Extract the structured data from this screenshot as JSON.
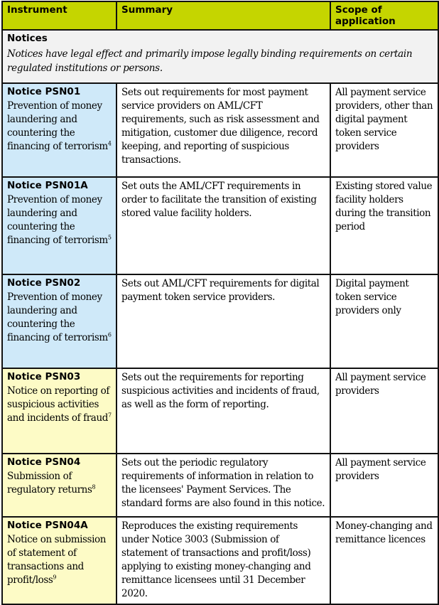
{
  "header": {
    "instrument": "Instrument",
    "summary": "Summary",
    "scope": "Scope of application"
  },
  "section": {
    "title": "Notices",
    "description": "Notices have legal effect and primarily impose legally binding requirements on certain regulated institutions or persons."
  },
  "colors": {
    "header": "#c5d500",
    "blue": "#cfe9f9",
    "yellow": "#fdfbc6",
    "section": "#f2f2f2"
  },
  "rows": [
    {
      "code": "Notice PSN01",
      "title": "Prevention of money laundering and countering the financing of terrorism",
      "footnote": "4",
      "summary": "Sets out requirements for most payment service providers on AML/CFT requirements, such as risk assessment and mitigation, customer due diligence, record keeping, and reporting of suspicious transactions.",
      "scope": "All payment service providers, other than digital payment token service providers",
      "color": "blue"
    },
    {
      "code": "Notice PSN01A",
      "title": "Prevention of money laundering and countering the financing of terrorism",
      "footnote": "5",
      "summary": "Set outs the AML/CFT requirements in order to facilitate the transition of existing stored value facility holders.",
      "scope": "Existing stored value facility holders during the transition period",
      "color": "blue"
    },
    {
      "code": "Notice PSN02",
      "title": "Prevention of money laundering and countering the financing of terrorism",
      "footnote": "6",
      "summary": "Sets out AML/CFT requirements for digital payment token service providers.",
      "scope": "Digital payment token service providers only",
      "color": "blue"
    },
    {
      "code": "Notice PSN03",
      "title": "Notice on reporting of suspicious activities and incidents of fraud",
      "footnote": "7",
      "summary": "Sets out the requirements for reporting suspicious activities and incidents of fraud, as well as the form of reporting.",
      "scope": "All payment service providers",
      "color": "yellow"
    },
    {
      "code": "Notice PSN04",
      "title": "Submission of regulatory returns",
      "footnote": "8",
      "summary": "Sets out the periodic regulatory requirements of information in relation to the licensees' Payment Services. The standard forms are also found in this notice.",
      "scope": "All payment service providers",
      "color": "yellow"
    },
    {
      "code": "Notice PSN04A",
      "title": "Notice on submission of statement of transactions and profit/loss",
      "footnote": "9",
      "summary": "Reproduces the existing requirements under Notice 3003 (Submission of statement of transactions and profit/loss) applying to existing money-changing and remittance licensees until 31 December 2020.",
      "scope": "Money-changing and remittance licences",
      "color": "yellow"
    }
  ]
}
